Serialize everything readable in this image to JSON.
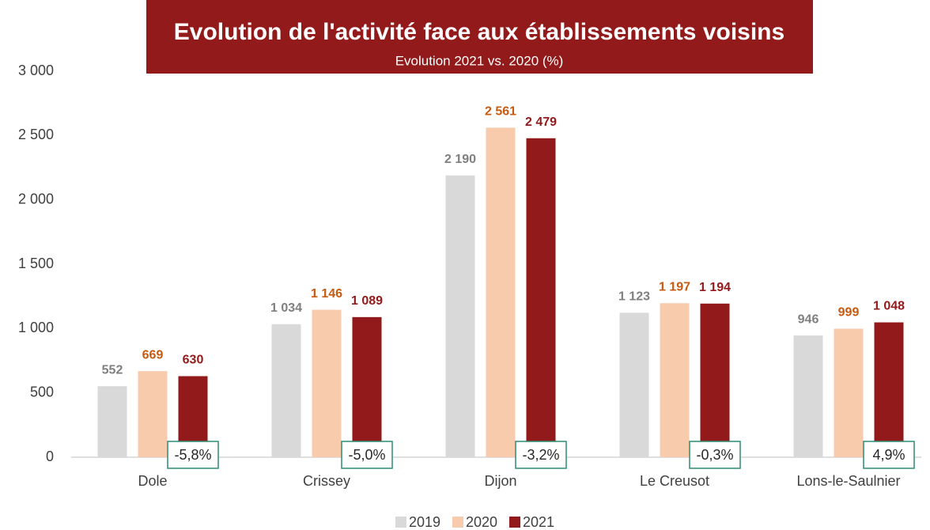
{
  "chart_data": {
    "type": "bar",
    "title": "Evolution de l'activité face aux établissements voisins",
    "subtitle": "Evolution 2021 vs. 2020 (%)",
    "categories": [
      "Dole",
      "Crissey",
      "Dijon",
      "Le Creusot",
      "Lons-le-Saulnier"
    ],
    "series": [
      {
        "name": "2019",
        "color": "#d9d9d9",
        "label_color": "#7f7f7f",
        "values": [
          552,
          1034,
          2190,
          1123,
          946
        ],
        "value_labels": [
          "552",
          "1 034",
          "2 190",
          "1 123",
          "946"
        ]
      },
      {
        "name": "2020",
        "color": "#f8cbad",
        "label_color": "#c55a11",
        "values": [
          669,
          1146,
          2561,
          1197,
          999
        ],
        "value_labels": [
          "669",
          "1 146",
          "2 561",
          "1 197",
          "999"
        ]
      },
      {
        "name": "2021",
        "color": "#931a1a",
        "label_color": "#931a1a",
        "values": [
          630,
          1089,
          2479,
          1194,
          1048
        ],
        "value_labels": [
          "630",
          "1 089",
          "2 479",
          "1 194",
          "1 048"
        ]
      }
    ],
    "annotations": [
      "-5,8%",
      "-5,0%",
      "-3,2%",
      "-0,3%",
      "4,9%"
    ],
    "ylim": [
      0,
      3000
    ],
    "yticks": [
      0,
      500,
      {
        "value": 1000,
        "label": "1 000"
      },
      {
        "value": 1500,
        "label": "1 500"
      },
      {
        "value": 2000,
        "label": "2 000"
      },
      {
        "value": 2500,
        "label": "2 500"
      },
      {
        "value": 3000,
        "label": "3 000"
      }
    ],
    "grid": false,
    "legend": "bottom"
  }
}
